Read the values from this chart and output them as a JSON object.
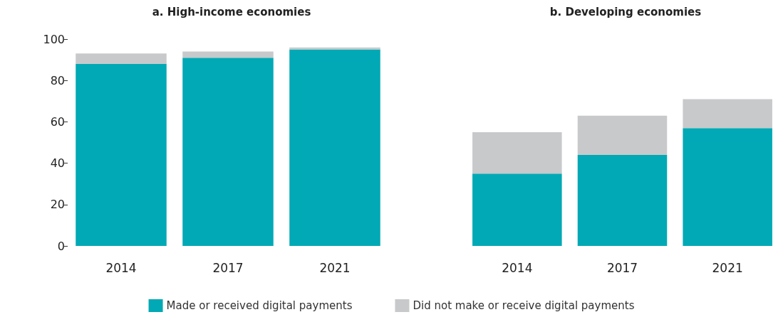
{
  "chart_data": [
    {
      "type": "bar",
      "title": "a. High-income economies",
      "categories": [
        "2014",
        "2017",
        "2021"
      ],
      "stacked": true,
      "series": [
        {
          "name": "Made or received digital payments",
          "color": "#00a9b5",
          "values": [
            88,
            91,
            95
          ]
        },
        {
          "name": "Did not make or receive digital payments",
          "color": "#c8c9cb",
          "values": [
            5,
            3,
            1
          ]
        }
      ],
      "ylim": [
        0,
        100
      ],
      "yticks": [
        0,
        20,
        40,
        60,
        80,
        100
      ],
      "grid": false,
      "legend": "bottom"
    },
    {
      "type": "bar",
      "title": "b. Developing economies",
      "categories": [
        "2014",
        "2017",
        "2021"
      ],
      "stacked": true,
      "series": [
        {
          "color": "#00a9b5",
          "values": [
            35,
            44,
            57
          ]
        },
        {
          "color": "#c8c9cb",
          "values": [
            20,
            19,
            14
          ]
        }
      ],
      "ylim": [
        0,
        100
      ],
      "yticks": [
        0,
        20,
        40,
        60,
        80,
        100
      ],
      "grid": false,
      "tick_labels": "x"
    }
  ]
}
